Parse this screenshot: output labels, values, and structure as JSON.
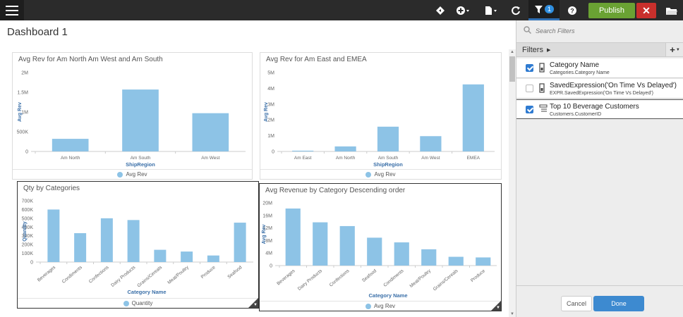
{
  "toolbar": {
    "menu_icon": "hamburger-icon",
    "filter_count": "1",
    "publish_label": "Publish",
    "close_label": "✕",
    "icons": [
      "diamond-icon",
      "add-circle-icon",
      "file-icon",
      "refresh-icon",
      "filter-icon",
      "help-icon",
      "folder-icon"
    ]
  },
  "dashboard": {
    "title": "Dashboard 1"
  },
  "filters_panel": {
    "search_placeholder": "Search Filters",
    "header_label": "Filters",
    "add_label": "+",
    "items": [
      {
        "name": "Category Name",
        "sub": "Categories.Category Name",
        "checked": true,
        "icon": "▯"
      },
      {
        "name": "SavedExpression('On Time Vs Delayed')",
        "sub": "EXPR.SavedExpression('On Time Vs Delayed')",
        "checked": false,
        "icon": "▯"
      },
      {
        "name": "Top 10 Beverage Customers",
        "sub": "Customers.CustomerID",
        "checked": true,
        "icon": "☰"
      }
    ],
    "cancel_label": "Cancel",
    "done_label": "Done"
  },
  "chart_data": [
    {
      "type": "bar",
      "title": "Avg Rev for Am North Am West and Am South",
      "categories": [
        "Am North",
        "Am South",
        "Am West"
      ],
      "values": [
        320000,
        1570000,
        970000
      ],
      "xlabel": "ShipRegion",
      "ylabel": "Avg Rev",
      "ylim": [
        0,
        2000000
      ],
      "yticks": [
        "0",
        "500K",
        "1M",
        "1.5M",
        "2M"
      ],
      "legend": "Avg Rev",
      "color": "#8dc3e6"
    },
    {
      "type": "bar",
      "title": "Avg Rev for Am East and EMEA",
      "categories": [
        "Am East",
        "Am North",
        "Am South",
        "Am West",
        "EMEA"
      ],
      "values": [
        50000,
        320000,
        1570000,
        970000,
        4250000
      ],
      "xlabel": "ShipRegion",
      "ylabel": "Avg Rev",
      "ylim": [
        0,
        5000000
      ],
      "yticks": [
        "0",
        "1M",
        "2M",
        "3M",
        "4M",
        "5M"
      ],
      "legend": "Avg Rev",
      "color": "#8dc3e6"
    },
    {
      "type": "bar",
      "title": "Qty by Categories",
      "categories": [
        "Beverages",
        "Condiments",
        "Confections",
        "Dairy Products",
        "Grains/Cereals",
        "Meat/Poultry",
        "Produce",
        "Seafood"
      ],
      "values": [
        600000,
        330000,
        500000,
        480000,
        140000,
        120000,
        75000,
        450000
      ],
      "xlabel": "Category Name",
      "ylabel": "Quantity",
      "ylim": [
        0,
        700000
      ],
      "yticks": [
        "0",
        "100K",
        "200K",
        "300K",
        "400K",
        "500K",
        "600K",
        "700K"
      ],
      "legend": "Quantity",
      "color": "#8dc3e6"
    },
    {
      "type": "bar",
      "title": "Avg Revenue by Category Descending order",
      "categories": [
        "Beverages",
        "Dairy Products",
        "Confections",
        "Seafood",
        "Condiments",
        "Meat/Poultry",
        "Grains/Cereals",
        "Produce"
      ],
      "values": [
        18200000,
        13800000,
        12600000,
        8900000,
        7400000,
        5200000,
        2800000,
        2600000
      ],
      "xlabel": "Category Name",
      "ylabel": "Avg Rev",
      "ylim": [
        0,
        20000000
      ],
      "yticks": [
        "0",
        "4M",
        "8M",
        "12M",
        "16M",
        "20M"
      ],
      "legend": "Avg Rev",
      "color": "#8dc3e6"
    }
  ]
}
